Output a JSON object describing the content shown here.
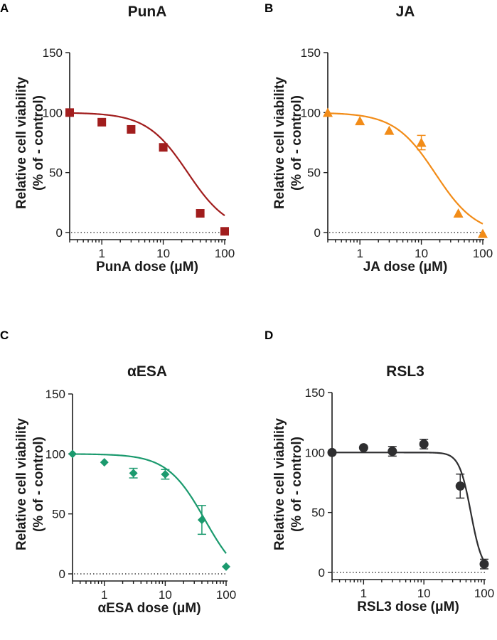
{
  "chart_data": [
    {
      "type": "scatter",
      "panel": "A",
      "title": "PunA",
      "xlabel": "PunA dose (μM)",
      "ylabel_lines": [
        "Relative cell viability",
        "(% of - control)"
      ],
      "xscale": "log",
      "xlim": [
        0.3,
        100
      ],
      "ylim": [
        0,
        150
      ],
      "xticks": [
        1,
        10,
        100
      ],
      "xtick_labels": [
        "1",
        "10",
        "100"
      ],
      "yticks": [
        0,
        50,
        100,
        150
      ],
      "ytick_labels": [
        "0",
        "50",
        "100",
        "150"
      ],
      "zero_reference_line": true,
      "color": "#a11d1d",
      "marker": "square",
      "series": [
        {
          "name": "PunA",
          "x": [
            0.3,
            1,
            3,
            10,
            40,
            100
          ],
          "y": [
            100,
            92,
            86,
            71,
            16,
            1
          ],
          "err": [
            0,
            0,
            0,
            0,
            0,
            0
          ]
        }
      ],
      "fit": {
        "top": 100,
        "bottom": 0,
        "ec50": 25,
        "hill": 1.3
      }
    },
    {
      "type": "scatter",
      "panel": "B",
      "title": "JA",
      "xlabel": "JA dose (μM)",
      "ylabel_lines": [
        "Relative cell viability",
        "(% of - control)"
      ],
      "xscale": "log",
      "xlim": [
        0.3,
        100
      ],
      "ylim": [
        0,
        150
      ],
      "xticks": [
        1,
        10,
        100
      ],
      "xtick_labels": [
        "1",
        "10",
        "100"
      ],
      "yticks": [
        0,
        50,
        100,
        150
      ],
      "ytick_labels": [
        "0",
        "50",
        "100",
        "150"
      ],
      "zero_reference_line": true,
      "color": "#f28c18",
      "marker": "triangle",
      "series": [
        {
          "name": "JA",
          "x": [
            0.3,
            1,
            3,
            10,
            40,
            100
          ],
          "y": [
            100,
            93,
            85,
            75,
            16,
            -1
          ],
          "err": [
            0,
            0,
            0,
            6,
            0,
            0
          ]
        }
      ],
      "fit": {
        "top": 100,
        "bottom": -2,
        "ec50": 17,
        "hill": 1.3
      }
    },
    {
      "type": "scatter",
      "panel": "C",
      "title": "αESA",
      "xlabel": "αESA dose (μM)",
      "ylabel_lines": [
        "Relative cell viability",
        "(% of - control)"
      ],
      "xscale": "log",
      "xlim": [
        0.3,
        100
      ],
      "ylim": [
        0,
        150
      ],
      "xticks": [
        1,
        10,
        100
      ],
      "xtick_labels": [
        "1",
        "10",
        "100"
      ],
      "yticks": [
        0,
        50,
        100,
        150
      ],
      "ytick_labels": [
        "0",
        "50",
        "100",
        "150"
      ],
      "zero_reference_line": true,
      "color": "#1b9a6e",
      "marker": "diamond",
      "series": [
        {
          "name": "αESA",
          "x": [
            0.3,
            1,
            3,
            10,
            40,
            100
          ],
          "y": [
            100,
            93,
            84,
            83,
            45,
            6
          ],
          "err": [
            0,
            0,
            4,
            4,
            12,
            0
          ]
        }
      ],
      "fit": {
        "top": 100,
        "bottom": -10,
        "ec50": 45,
        "hill": 1.4
      }
    },
    {
      "type": "scatter",
      "panel": "D",
      "title": "RSL3",
      "xlabel": "RSL3 dose (μM)",
      "ylabel_lines": [
        "Relative cell viability",
        "(% of - control)"
      ],
      "xscale": "log",
      "xlim": [
        0.3,
        100
      ],
      "ylim": [
        0,
        150
      ],
      "xticks": [
        1,
        10,
        100
      ],
      "xtick_labels": [
        "1",
        "10",
        "100"
      ],
      "yticks": [
        0,
        50,
        100,
        150
      ],
      "ytick_labels": [
        "0",
        "50",
        "100",
        "150"
      ],
      "zero_reference_line": true,
      "color": "#2e2e30",
      "marker": "circle",
      "series": [
        {
          "name": "RSL3",
          "x": [
            0.3,
            1,
            3,
            10,
            40,
            100
          ],
          "y": [
            100,
            104,
            101,
            107,
            72,
            7
          ],
          "err": [
            0,
            0,
            4,
            4,
            10,
            4
          ]
        }
      ],
      "fit": {
        "top": 100,
        "bottom": 0,
        "ec50": 60,
        "hill": 4.5
      }
    }
  ]
}
